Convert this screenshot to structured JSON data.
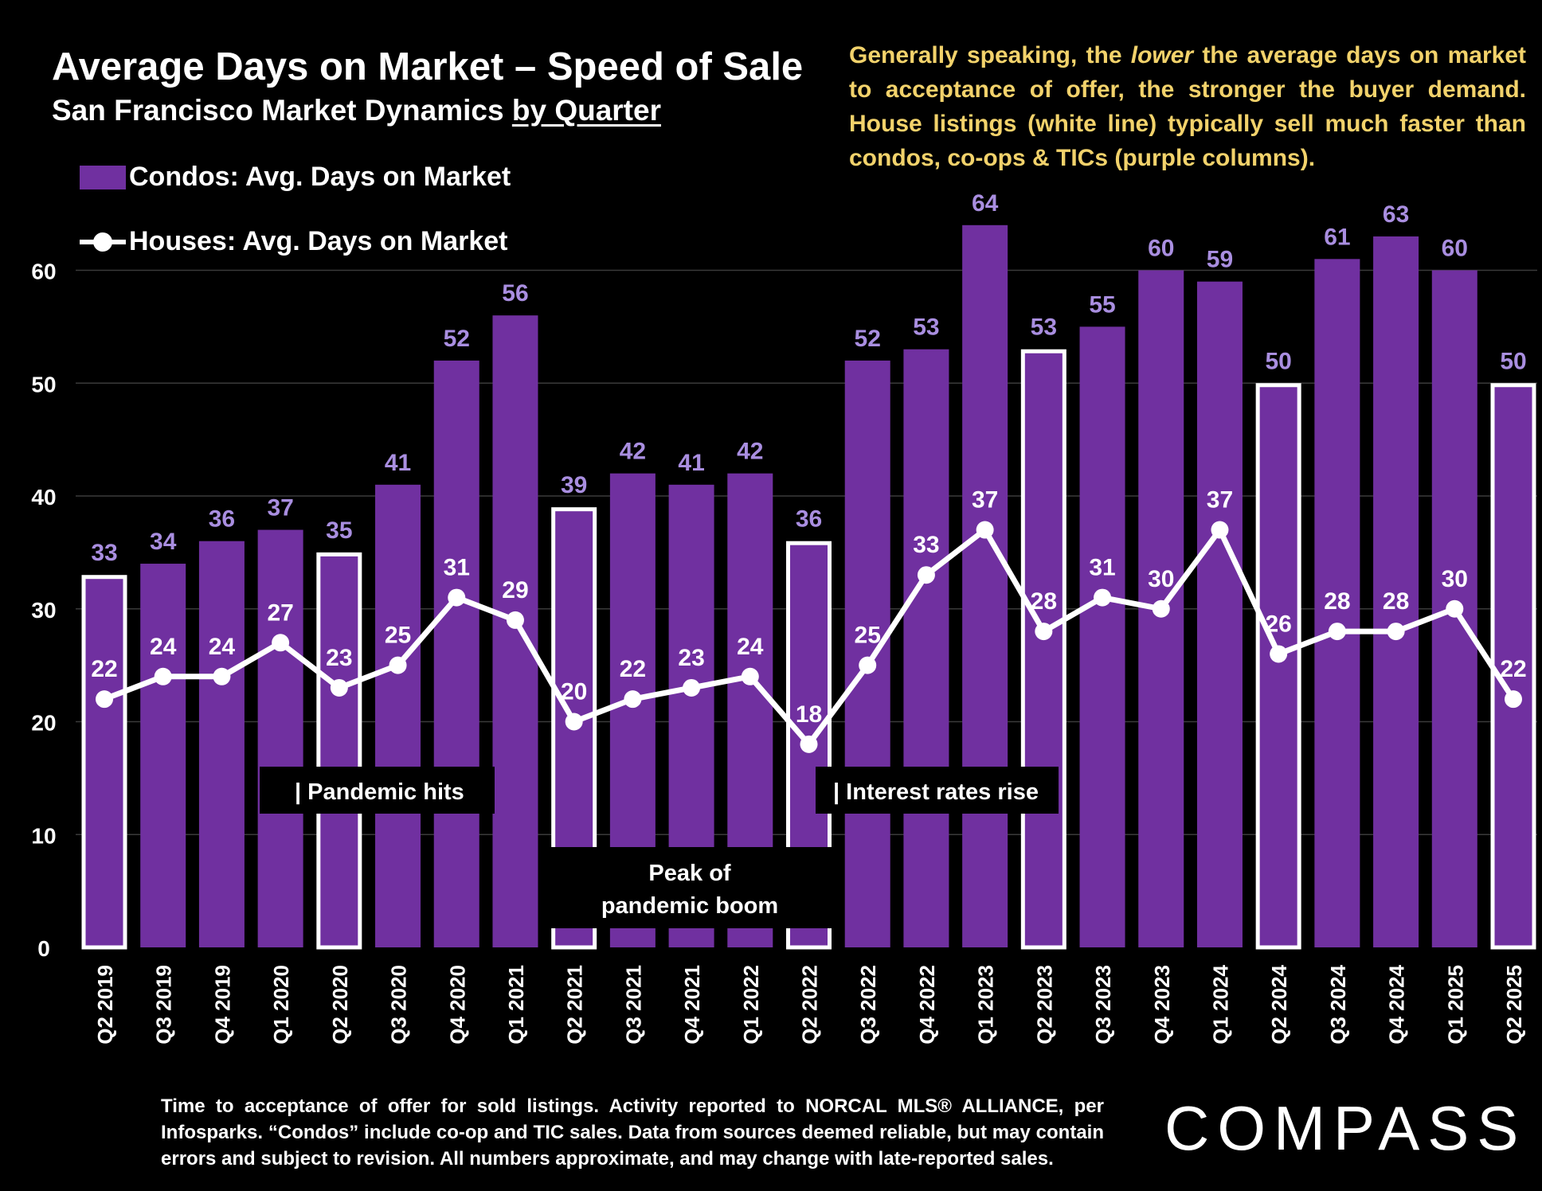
{
  "title": "Average Days on Market – Speed of Sale",
  "subtitle_main": "San Francisco Market Dynamics ",
  "subtitle_underlined": "by Quarter",
  "note": {
    "part1": "Generally speaking, the ",
    "emphasis": "lower",
    "part2": " the average days on market to acceptance of offer, the stronger the buyer demand.  House listings (white line) typically sell much faster than condos, co-ops & TICs (purple columns)."
  },
  "footnote": "Time to acceptance of offer for sold listings. Activity reported to NORCAL MLS® ALLIANCE, per Infosparks. “Condos” include co-op and TIC sales. Data from sources deemed reliable, but may contain errors and subject to revision. All numbers approximate, and may change with late-reported sales.",
  "logo": "COMPASS",
  "colors": {
    "bar": "#7030a0",
    "bar_label": "#a98ee0",
    "line": "#ffffff",
    "note": "#f2d26b",
    "background": "#000000"
  },
  "chart_data": {
    "type": "bar",
    "title": "Average Days on Market – Speed of Sale",
    "ylim": [
      0,
      65
    ],
    "yticks": [
      0,
      10,
      20,
      30,
      40,
      50,
      60
    ],
    "grid": true,
    "legend_placement": "top-left",
    "categories": [
      "Q2 2019",
      "Q3 2019",
      "Q4 2019",
      "Q1 2020",
      "Q2 2020",
      "Q3 2020",
      "Q4 2020",
      "Q1 2021",
      "Q2 2021",
      "Q3 2021",
      "Q4 2021",
      "Q1 2022",
      "Q2 2022",
      "Q3 2022",
      "Q4 2022",
      "Q1 2023",
      "Q2 2023",
      "Q3 2023",
      "Q4 2023",
      "Q1 2024",
      "Q2 2024",
      "Q3 2024",
      "Q4 2024",
      "Q1 2025",
      "Q2 2025"
    ],
    "series": [
      {
        "name": "Condos: Avg. Days on Market",
        "type": "bar",
        "values": [
          33,
          34,
          36,
          37,
          35,
          41,
          52,
          56,
          39,
          42,
          41,
          42,
          36,
          52,
          53,
          64,
          53,
          55,
          60,
          59,
          50,
          61,
          63,
          60,
          50
        ]
      },
      {
        "name": "Houses: Avg. Days on Market",
        "type": "line",
        "values": [
          22,
          24,
          24,
          27,
          23,
          25,
          31,
          29,
          20,
          22,
          23,
          24,
          18,
          25,
          33,
          37,
          28,
          31,
          30,
          37,
          26,
          28,
          28,
          30,
          22
        ]
      }
    ],
    "highlighted_quarters": [
      "Q2 2019",
      "Q2 2020",
      "Q2 2021",
      "Q2 2022",
      "Q2 2023",
      "Q2 2024",
      "Q2 2025"
    ],
    "annotations": [
      {
        "text": "| Pandemic hits"
      },
      {
        "text": "| Interest rates rise"
      },
      {
        "line1": "Peak of",
        "line2": "pandemic boom"
      }
    ]
  }
}
